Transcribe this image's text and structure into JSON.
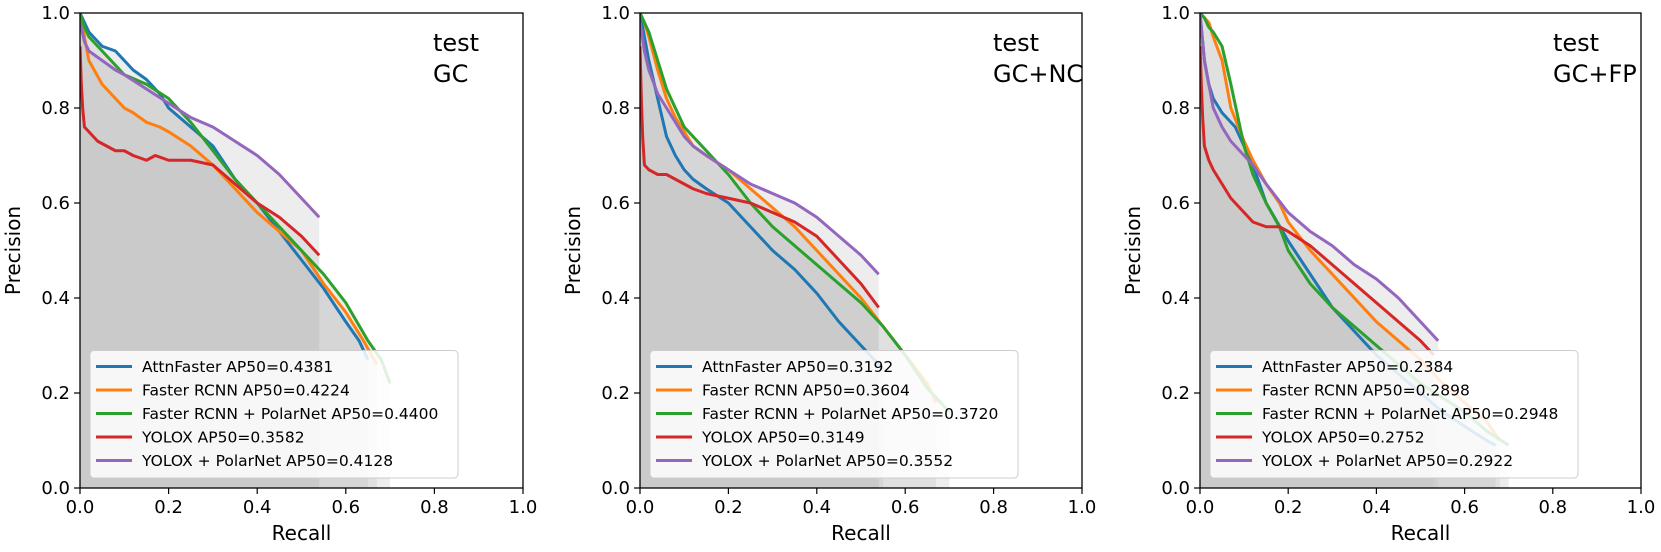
{
  "colors": {
    "AttnFaster": "#1f77b4",
    "Faster RCNN": "#ff7f0e",
    "Faster RCNN + PolarNet": "#2ca02c",
    "YOLOX": "#d62728",
    "YOLOX + PolarNet": "#9467bd",
    "area_dark": "#bdbdbd",
    "area_light": "#e8e8e8"
  },
  "chart_data": [
    {
      "type": "line",
      "annotation": [
        "test",
        "GC"
      ],
      "xlabel": "Recall",
      "ylabel": "Precision",
      "xlim": [
        0,
        1
      ],
      "ylim": [
        0,
        1
      ],
      "ticks": [
        "0.0",
        "0.2",
        "0.4",
        "0.6",
        "0.8",
        "1.0"
      ],
      "legend_position": "lower-left",
      "series": [
        {
          "name": "AttnFaster",
          "legend": "AttnFaster AP50=0.4381",
          "x": [
            0.0,
            0.01,
            0.02,
            0.05,
            0.08,
            0.1,
            0.12,
            0.15,
            0.18,
            0.2,
            0.25,
            0.3,
            0.35,
            0.4,
            0.45,
            0.5,
            0.55,
            0.6,
            0.63,
            0.65
          ],
          "y": [
            1.0,
            0.98,
            0.96,
            0.93,
            0.92,
            0.9,
            0.88,
            0.86,
            0.83,
            0.8,
            0.76,
            0.72,
            0.65,
            0.6,
            0.54,
            0.48,
            0.42,
            0.35,
            0.31,
            0.27
          ]
        },
        {
          "name": "Faster RCNN",
          "legend": "Faster RCNN AP50=0.4224",
          "x": [
            0.0,
            0.01,
            0.02,
            0.05,
            0.08,
            0.1,
            0.12,
            0.15,
            0.18,
            0.2,
            0.25,
            0.3,
            0.35,
            0.4,
            0.45,
            0.5,
            0.55,
            0.6,
            0.64,
            0.67
          ],
          "y": [
            1.0,
            0.95,
            0.9,
            0.85,
            0.82,
            0.8,
            0.79,
            0.77,
            0.76,
            0.75,
            0.72,
            0.68,
            0.63,
            0.58,
            0.54,
            0.5,
            0.43,
            0.37,
            0.31,
            0.26
          ]
        },
        {
          "name": "Faster RCNN + PolarNet",
          "legend": "Faster RCNN + PolarNet AP50=0.4400",
          "x": [
            0.0,
            0.01,
            0.02,
            0.05,
            0.08,
            0.1,
            0.15,
            0.2,
            0.25,
            0.3,
            0.35,
            0.4,
            0.45,
            0.5,
            0.55,
            0.6,
            0.65,
            0.68,
            0.7
          ],
          "y": [
            1.0,
            0.97,
            0.95,
            0.92,
            0.89,
            0.87,
            0.85,
            0.82,
            0.77,
            0.71,
            0.65,
            0.6,
            0.55,
            0.5,
            0.45,
            0.39,
            0.31,
            0.27,
            0.22
          ]
        },
        {
          "name": "YOLOX",
          "legend": "YOLOX AP50=0.3582",
          "x": [
            0.0,
            0.003,
            0.006,
            0.01,
            0.02,
            0.04,
            0.06,
            0.08,
            0.1,
            0.12,
            0.15,
            0.17,
            0.2,
            0.25,
            0.3,
            0.35,
            0.4,
            0.45,
            0.5,
            0.54
          ],
          "y": [
            0.93,
            0.85,
            0.8,
            0.76,
            0.75,
            0.73,
            0.72,
            0.71,
            0.71,
            0.7,
            0.69,
            0.7,
            0.69,
            0.69,
            0.68,
            0.64,
            0.6,
            0.57,
            0.53,
            0.49
          ]
        },
        {
          "name": "YOLOX + PolarNet",
          "legend": "YOLOX + PolarNet AP50=0.4128",
          "x": [
            0.0,
            0.01,
            0.02,
            0.05,
            0.08,
            0.1,
            0.15,
            0.2,
            0.25,
            0.3,
            0.35,
            0.4,
            0.45,
            0.5,
            0.54
          ],
          "y": [
            0.98,
            0.94,
            0.92,
            0.9,
            0.88,
            0.87,
            0.84,
            0.81,
            0.78,
            0.76,
            0.73,
            0.7,
            0.66,
            0.61,
            0.57
          ]
        }
      ]
    },
    {
      "type": "line",
      "annotation": [
        "test",
        "GC+NC"
      ],
      "xlabel": "Recall",
      "ylabel": "Precision",
      "xlim": [
        0,
        1
      ],
      "ylim": [
        0,
        1
      ],
      "ticks": [
        "0.0",
        "0.2",
        "0.4",
        "0.6",
        "0.8",
        "1.0"
      ],
      "legend_position": "lower-left",
      "series": [
        {
          "name": "AttnFaster",
          "legend": "AttnFaster AP50=0.3192",
          "x": [
            0.0,
            0.01,
            0.02,
            0.04,
            0.06,
            0.08,
            0.1,
            0.12,
            0.15,
            0.2,
            0.25,
            0.3,
            0.35,
            0.4,
            0.45,
            0.5,
            0.55
          ],
          "y": [
            1.0,
            0.95,
            0.9,
            0.82,
            0.74,
            0.7,
            0.67,
            0.65,
            0.63,
            0.6,
            0.55,
            0.5,
            0.46,
            0.41,
            0.35,
            0.3,
            0.25
          ]
        },
        {
          "name": "Faster RCNN",
          "legend": "Faster RCNN AP50=0.3604",
          "x": [
            0.0,
            0.01,
            0.02,
            0.04,
            0.06,
            0.08,
            0.1,
            0.12,
            0.15,
            0.2,
            0.25,
            0.3,
            0.35,
            0.4,
            0.45,
            0.5,
            0.55,
            0.6,
            0.65,
            0.67
          ],
          "y": [
            1.0,
            0.98,
            0.95,
            0.88,
            0.82,
            0.78,
            0.75,
            0.72,
            0.7,
            0.67,
            0.63,
            0.59,
            0.55,
            0.5,
            0.45,
            0.4,
            0.34,
            0.28,
            0.22,
            0.18
          ]
        },
        {
          "name": "Faster RCNN + PolarNet",
          "legend": "Faster RCNN + PolarNet AP50=0.3720",
          "x": [
            0.0,
            0.01,
            0.02,
            0.04,
            0.06,
            0.08,
            0.1,
            0.12,
            0.15,
            0.2,
            0.25,
            0.3,
            0.35,
            0.4,
            0.45,
            0.5,
            0.55,
            0.6,
            0.65,
            0.7
          ],
          "y": [
            1.0,
            0.98,
            0.96,
            0.9,
            0.84,
            0.8,
            0.76,
            0.74,
            0.71,
            0.66,
            0.6,
            0.55,
            0.51,
            0.47,
            0.43,
            0.39,
            0.34,
            0.28,
            0.21,
            0.16
          ]
        },
        {
          "name": "YOLOX",
          "legend": "YOLOX AP50=0.3149",
          "x": [
            0.0,
            0.003,
            0.006,
            0.01,
            0.02,
            0.04,
            0.06,
            0.08,
            0.1,
            0.12,
            0.15,
            0.2,
            0.25,
            0.3,
            0.35,
            0.4,
            0.45,
            0.5,
            0.54
          ],
          "y": [
            0.93,
            0.82,
            0.74,
            0.68,
            0.67,
            0.66,
            0.66,
            0.65,
            0.64,
            0.63,
            0.62,
            0.61,
            0.6,
            0.58,
            0.56,
            0.53,
            0.48,
            0.43,
            0.38
          ]
        },
        {
          "name": "YOLOX + PolarNet",
          "legend": "YOLOX + PolarNet AP50=0.3552",
          "x": [
            0.0,
            0.01,
            0.02,
            0.04,
            0.06,
            0.08,
            0.1,
            0.12,
            0.15,
            0.2,
            0.25,
            0.3,
            0.35,
            0.4,
            0.45,
            0.5,
            0.54
          ],
          "y": [
            0.98,
            0.92,
            0.88,
            0.83,
            0.8,
            0.77,
            0.74,
            0.72,
            0.7,
            0.67,
            0.64,
            0.62,
            0.6,
            0.57,
            0.53,
            0.49,
            0.45
          ]
        }
      ]
    },
    {
      "type": "line",
      "annotation": [
        "test",
        "GC+FP"
      ],
      "xlabel": "Recall",
      "ylabel": "Precision",
      "xlim": [
        0,
        1
      ],
      "ylim": [
        0,
        1
      ],
      "ticks": [
        "0.0",
        "0.2",
        "0.4",
        "0.6",
        "0.8",
        "1.0"
      ],
      "legend_position": "lower-left",
      "series": [
        {
          "name": "AttnFaster",
          "legend": "AttnFaster AP50=0.2384",
          "x": [
            0.0,
            0.005,
            0.01,
            0.02,
            0.03,
            0.05,
            0.08,
            0.1,
            0.12,
            0.15,
            0.2,
            0.25,
            0.3,
            0.35,
            0.4,
            0.45,
            0.5,
            0.55,
            0.6,
            0.65,
            0.67
          ],
          "y": [
            1.0,
            0.95,
            0.9,
            0.85,
            0.82,
            0.79,
            0.76,
            0.72,
            0.68,
            0.6,
            0.52,
            0.45,
            0.38,
            0.33,
            0.28,
            0.24,
            0.2,
            0.16,
            0.13,
            0.1,
            0.09
          ]
        },
        {
          "name": "Faster RCNN",
          "legend": "Faster RCNN AP50=0.2898",
          "x": [
            0.0,
            0.01,
            0.02,
            0.03,
            0.05,
            0.07,
            0.1,
            0.12,
            0.15,
            0.18,
            0.2,
            0.25,
            0.3,
            0.35,
            0.4,
            0.45,
            0.5,
            0.55,
            0.6,
            0.65,
            0.68
          ],
          "y": [
            1.0,
            0.99,
            0.98,
            0.95,
            0.9,
            0.8,
            0.73,
            0.69,
            0.64,
            0.6,
            0.56,
            0.5,
            0.45,
            0.4,
            0.35,
            0.31,
            0.27,
            0.22,
            0.18,
            0.14,
            0.1
          ]
        },
        {
          "name": "Faster RCNN + PolarNet",
          "legend": "Faster RCNN + PolarNet AP50=0.2948",
          "x": [
            0.0,
            0.01,
            0.02,
            0.03,
            0.05,
            0.07,
            0.1,
            0.12,
            0.15,
            0.18,
            0.2,
            0.25,
            0.3,
            0.35,
            0.4,
            0.45,
            0.5,
            0.55,
            0.6,
            0.65,
            0.7
          ],
          "y": [
            1.0,
            0.99,
            0.97,
            0.96,
            0.93,
            0.85,
            0.72,
            0.66,
            0.6,
            0.55,
            0.5,
            0.43,
            0.38,
            0.34,
            0.3,
            0.26,
            0.22,
            0.19,
            0.16,
            0.12,
            0.09
          ]
        },
        {
          "name": "YOLOX",
          "legend": "YOLOX AP50=0.2752",
          "x": [
            0.0,
            0.003,
            0.006,
            0.01,
            0.02,
            0.03,
            0.05,
            0.07,
            0.1,
            0.12,
            0.15,
            0.18,
            0.2,
            0.25,
            0.3,
            0.35,
            0.4,
            0.45,
            0.5,
            0.53
          ],
          "y": [
            0.93,
            0.85,
            0.78,
            0.72,
            0.69,
            0.67,
            0.64,
            0.61,
            0.58,
            0.56,
            0.55,
            0.55,
            0.54,
            0.51,
            0.47,
            0.43,
            0.39,
            0.35,
            0.31,
            0.28
          ]
        },
        {
          "name": "YOLOX + PolarNet",
          "legend": "YOLOX + PolarNet AP50=0.2922",
          "x": [
            0.0,
            0.005,
            0.01,
            0.02,
            0.03,
            0.05,
            0.07,
            0.1,
            0.12,
            0.15,
            0.2,
            0.25,
            0.3,
            0.35,
            0.4,
            0.45,
            0.5,
            0.54
          ],
          "y": [
            1.0,
            0.95,
            0.9,
            0.85,
            0.8,
            0.76,
            0.73,
            0.7,
            0.68,
            0.64,
            0.58,
            0.54,
            0.51,
            0.47,
            0.44,
            0.4,
            0.35,
            0.31
          ]
        }
      ]
    }
  ]
}
